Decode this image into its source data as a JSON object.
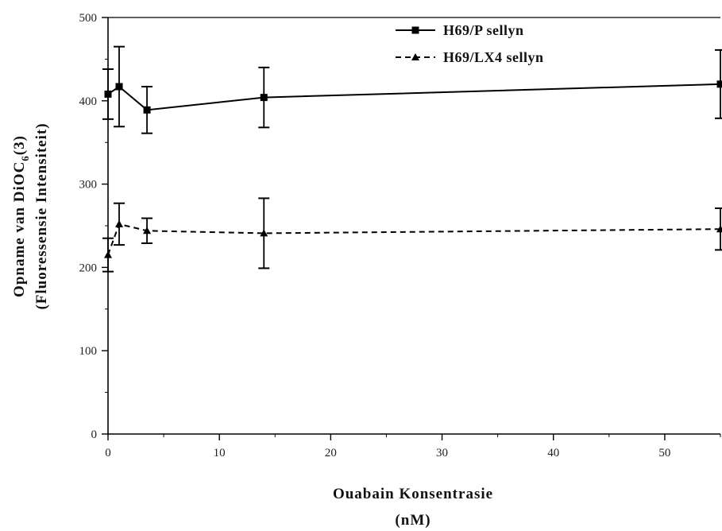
{
  "chart_data": {
    "type": "line",
    "xlabel_line1": "Ouabain Konsentrasie",
    "xlabel_line2": "(nM)",
    "ylabel_line1_prefix": "Opname van DiOC",
    "ylabel_line1_sub": "6",
    "ylabel_line1_suffix": "(3)",
    "ylabel_line2": "(Fluoressensie Intensiteit)",
    "xlim": [
      0,
      55
    ],
    "ylim": [
      0,
      500
    ],
    "xticks": [
      0,
      10,
      20,
      30,
      40,
      50
    ],
    "yticks": [
      0,
      100,
      200,
      300,
      400,
      500
    ],
    "grid": false,
    "legend_position": "top-right",
    "series": [
      {
        "name": "H69/P sellyn",
        "line_style": "solid",
        "marker": "square",
        "color": "#000000",
        "x": [
          0,
          1,
          3.5,
          14,
          55
        ],
        "y": [
          408,
          417,
          389,
          404,
          420
        ],
        "err": [
          30,
          48,
          28,
          36,
          41
        ]
      },
      {
        "name": "H69/LX4 sellyn",
        "line_style": "dashed",
        "marker": "triangle",
        "color": "#000000",
        "x": [
          0,
          1,
          3.5,
          14,
          55
        ],
        "y": [
          215,
          252,
          244,
          241,
          246
        ],
        "err": [
          20,
          25,
          15,
          42,
          25
        ]
      }
    ]
  }
}
